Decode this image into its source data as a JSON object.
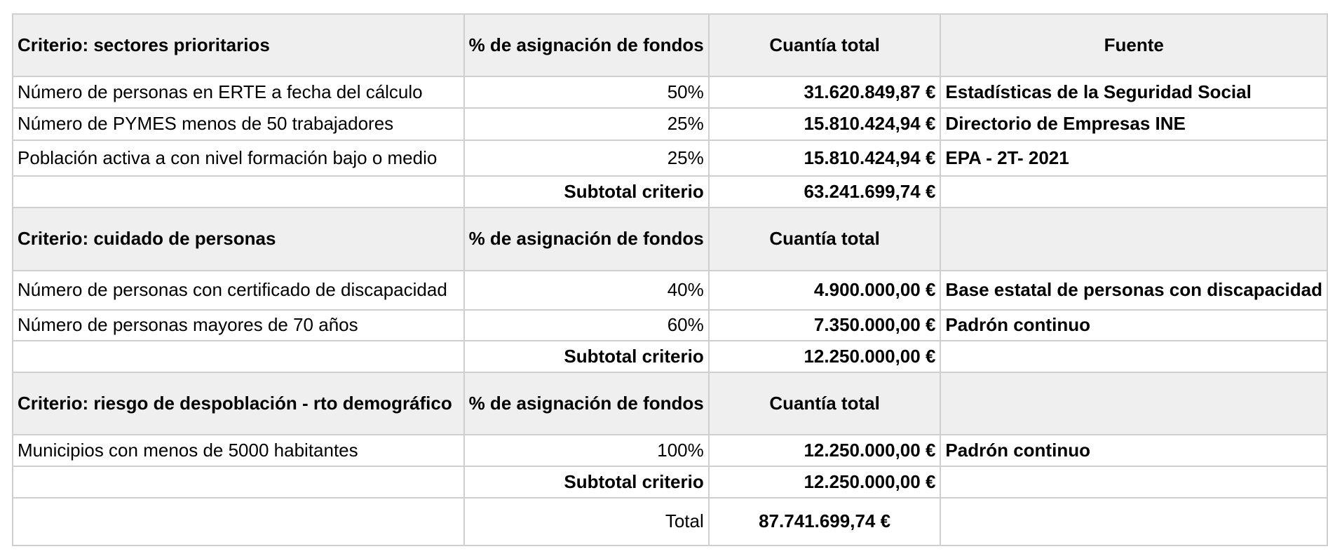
{
  "headers": {
    "pct": "% de asignación de fondos",
    "amount": "Cuantía total",
    "source": "Fuente"
  },
  "sections": [
    {
      "title": "Criterio: sectores prioritarios",
      "rows": [
        {
          "label": "Número de personas en ERTE a fecha del cálculo",
          "pct": "50%",
          "amount": "31.620.849,87 €",
          "source": "Estadísticas de la Seguridad Social"
        },
        {
          "label": "Número de PYMES menos de 50 trabajadores",
          "pct": "25%",
          "amount": "15.810.424,94 €",
          "source": "Directorio de Empresas INE"
        },
        {
          "label": "Población activa a con nivel formación bajo o medio",
          "pct": "25%",
          "amount": "15.810.424,94 €",
          "source": "EPA - 2T- 2021"
        }
      ],
      "subtotal_label": "Subtotal criterio",
      "subtotal_amount": "63.241.699,74 €"
    },
    {
      "title": "Criterio: cuidado de personas",
      "rows": [
        {
          "label": "Número de personas con certificado de discapacidad",
          "pct": "40%",
          "amount": "4.900.000,00 €",
          "source": "Base estatal de personas con discapacidad"
        },
        {
          "label": "Número de personas mayores de 70 años",
          "pct": "60%",
          "amount": "7.350.000,00 €",
          "source": "Padrón continuo"
        }
      ],
      "subtotal_label": "Subtotal criterio",
      "subtotal_amount": "12.250.000,00 €"
    },
    {
      "title": "Criterio: riesgo de despoblación - rto demográfico",
      "rows": [
        {
          "label": "Municipios con menos de 5000 habitantes",
          "pct": "100%",
          "amount": "12.250.000,00 €",
          "source": "Padrón continuo"
        }
      ],
      "subtotal_label": "Subtotal criterio",
      "subtotal_amount": "12.250.000,00 €"
    }
  ],
  "total": {
    "label": "Total",
    "amount": "87.741.699,74 €"
  },
  "colors": {
    "header_text": "#8b0000",
    "subtotal_text": "#1f3f93",
    "total_text": "#1b6b1b",
    "header_bg": "#efefef"
  }
}
